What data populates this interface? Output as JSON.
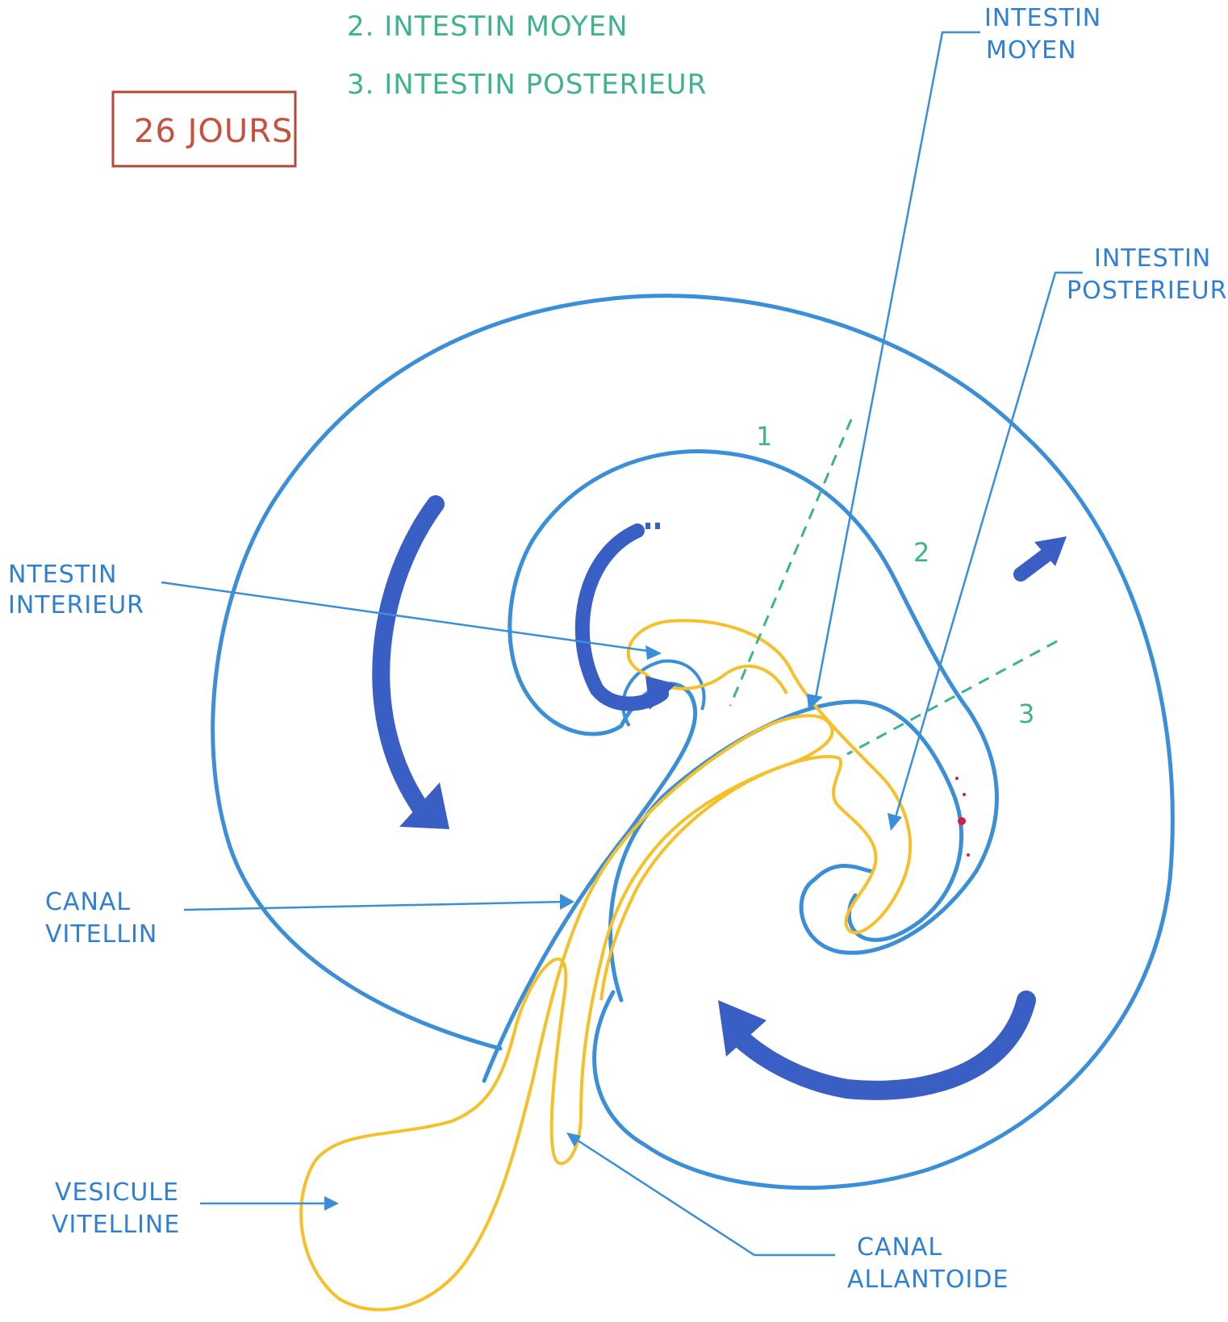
{
  "age_box": {
    "text": "26 JOURS",
    "color": "#c4523f"
  },
  "legend": [
    {
      "text": "2. INTESTIN MOYEN"
    },
    {
      "text": "3. INTESTIN POSTERIEUR"
    }
  ],
  "section_numbers": [
    "1",
    "2",
    "3"
  ],
  "labels": {
    "intestin_moyen": [
      "INTESTIN",
      "MOYEN"
    ],
    "intestin_posterieur": [
      "INTESTIN",
      "POSTERIEUR"
    ],
    "intestin_interieur": [
      "NTESTIN",
      "INTERIEUR"
    ],
    "canal_vitellin": [
      "CANAL",
      "VITELLIN"
    ],
    "vesicule_vitelline": [
      "VESICULE",
      "VITELLINE"
    ],
    "canal_allantoide": [
      "CANAL",
      "ALLANTOIDE"
    ]
  },
  "colors": {
    "embryo_outline": "#3b8fd8",
    "gut": "#f5c02a",
    "rotation_arrows": "#3a5fc4",
    "label_text": "#2f7fd2",
    "section_text": "#3fb38e",
    "blood_spots": "#d0204a"
  }
}
